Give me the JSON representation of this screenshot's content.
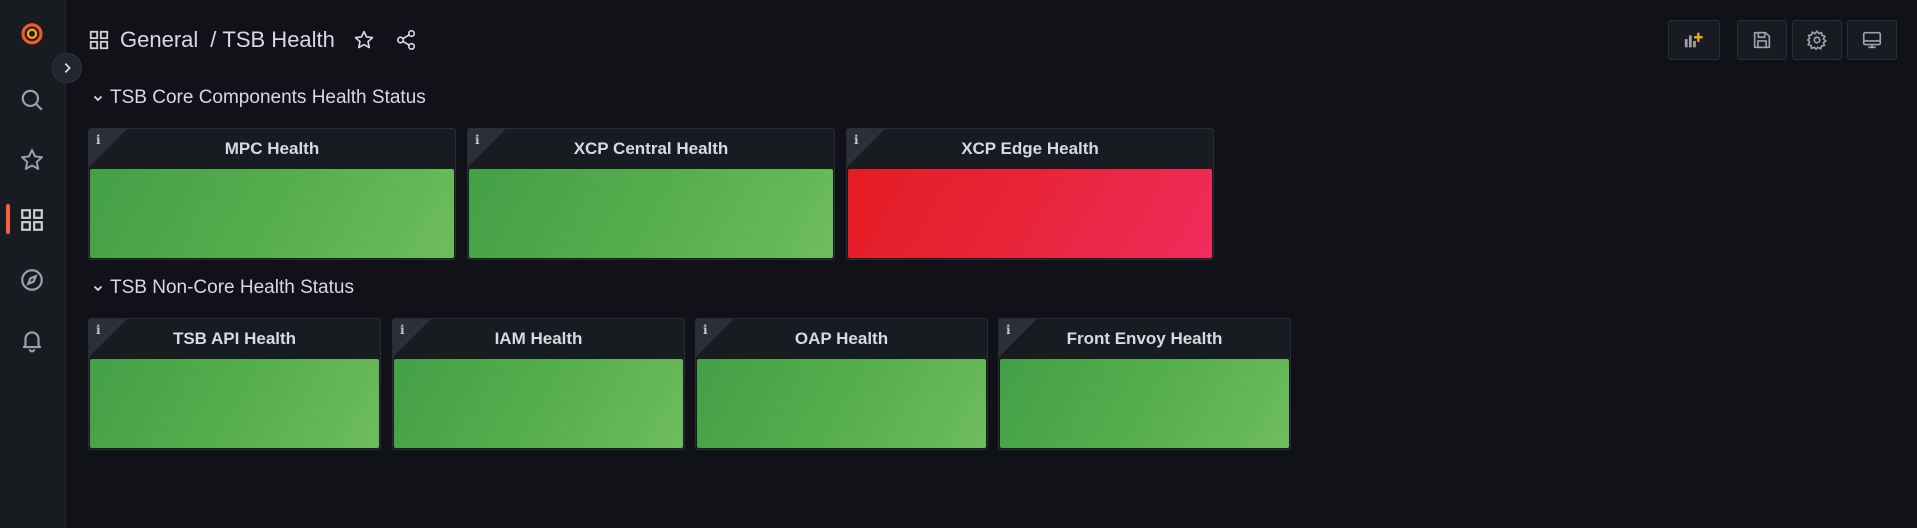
{
  "sidebar": {
    "items": [
      {
        "name": "grafana-logo",
        "icon": "grafana-logo-icon"
      },
      {
        "name": "search",
        "icon": "search-icon"
      },
      {
        "name": "starred",
        "icon": "star-icon"
      },
      {
        "name": "dashboards",
        "icon": "dashboards-grid-icon",
        "active": true
      },
      {
        "name": "explore",
        "icon": "compass-icon"
      },
      {
        "name": "alerting",
        "icon": "bell-icon"
      }
    ],
    "expand_icon": "chevron-right-icon",
    "accent_color": "#f55f3e"
  },
  "breadcrumb": {
    "folder": "General",
    "separator": "/",
    "page": "TSB Health"
  },
  "toolbar": {
    "icons": [
      "add-panel-icon",
      "save-icon",
      "settings-gear-icon",
      "tv-mode-icon"
    ]
  },
  "rows": [
    {
      "title": "TSB Core Components Health Status",
      "panels": [
        {
          "title": "MPC Health",
          "status": "healthy",
          "color": "#56ad4c"
        },
        {
          "title": "XCP Central Health",
          "status": "healthy",
          "color": "#56ad4c"
        },
        {
          "title": "XCP Edge Health",
          "status": "unhealthy",
          "color": "#e8253a"
        }
      ]
    },
    {
      "title": "TSB Non-Core Health Status",
      "panels": [
        {
          "title": "TSB API Health",
          "status": "healthy",
          "color": "#56ad4c"
        },
        {
          "title": "IAM Health",
          "status": "healthy",
          "color": "#56ad4c"
        },
        {
          "title": "OAP Health",
          "status": "healthy",
          "color": "#56ad4c"
        },
        {
          "title": "Front Envoy Health",
          "status": "healthy",
          "color": "#56ad4c"
        }
      ]
    }
  ],
  "info_glyph": "i"
}
